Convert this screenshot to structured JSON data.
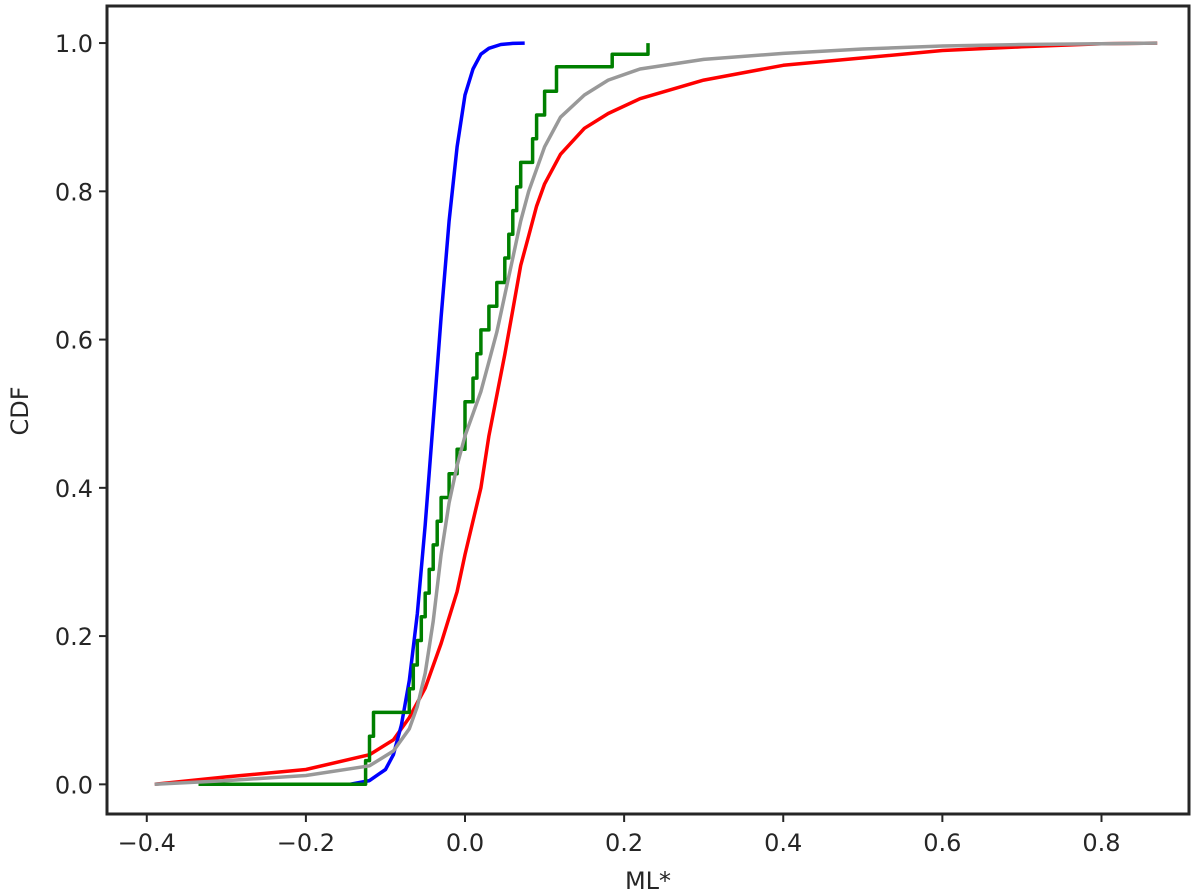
{
  "chart_data": {
    "type": "line",
    "title": "",
    "xlabel": "ML*",
    "ylabel": "CDF",
    "xlim": [
      -0.45,
      0.91
    ],
    "ylim": [
      -0.04,
      1.05
    ],
    "grid": false,
    "x_ticks": [
      -0.4,
      -0.2,
      0.0,
      0.2,
      0.4,
      0.6,
      0.8
    ],
    "x_tick_labels": [
      "−0.4",
      "−0.2",
      "0.0",
      "0.2",
      "0.4",
      "0.6",
      "0.8"
    ],
    "y_ticks": [
      0.0,
      0.2,
      0.4,
      0.6,
      0.8,
      1.0
    ],
    "y_tick_labels": [
      "0.0",
      "0.2",
      "0.4",
      "0.6",
      "0.8",
      "1.0"
    ],
    "series": [
      {
        "color": "#ff0000",
        "x": [
          -0.39,
          -0.3,
          -0.2,
          -0.12,
          -0.09,
          -0.07,
          -0.05,
          -0.03,
          -0.01,
          0.0,
          0.02,
          0.03,
          0.05,
          0.06,
          0.07,
          0.08,
          0.09,
          0.1,
          0.12,
          0.15,
          0.18,
          0.22,
          0.3,
          0.4,
          0.5,
          0.6,
          0.7,
          0.8,
          0.87
        ],
        "y": [
          0.0,
          0.01,
          0.02,
          0.04,
          0.06,
          0.09,
          0.13,
          0.19,
          0.26,
          0.31,
          0.4,
          0.47,
          0.58,
          0.64,
          0.7,
          0.74,
          0.78,
          0.81,
          0.85,
          0.885,
          0.905,
          0.925,
          0.95,
          0.97,
          0.98,
          0.99,
          0.995,
          0.999,
          1.0
        ]
      },
      {
        "color": "#0000ff",
        "x": [
          -0.145,
          -0.12,
          -0.1,
          -0.09,
          -0.08,
          -0.07,
          -0.06,
          -0.05,
          -0.04,
          -0.03,
          -0.02,
          -0.01,
          0.0,
          0.01,
          0.02,
          0.03,
          0.045,
          0.06,
          0.075
        ],
        "y": [
          0.0,
          0.005,
          0.02,
          0.04,
          0.08,
          0.14,
          0.23,
          0.35,
          0.49,
          0.63,
          0.76,
          0.86,
          0.93,
          0.965,
          0.985,
          0.993,
          0.998,
          0.9995,
          1.0
        ]
      },
      {
        "color": "#008000",
        "step": true,
        "x": [
          -0.335,
          -0.125,
          -0.12,
          -0.115,
          -0.07,
          -0.065,
          -0.06,
          -0.055,
          -0.05,
          -0.045,
          -0.04,
          -0.035,
          -0.03,
          -0.02,
          -0.01,
          0.0,
          0.01,
          0.015,
          0.02,
          0.03,
          0.04,
          0.05,
          0.055,
          0.06,
          0.065,
          0.07,
          0.085,
          0.09,
          0.1,
          0.115,
          0.185,
          0.23
        ],
        "y": [
          0.0,
          0.032,
          0.065,
          0.097,
          0.129,
          0.161,
          0.194,
          0.226,
          0.258,
          0.29,
          0.323,
          0.355,
          0.387,
          0.419,
          0.452,
          0.516,
          0.548,
          0.581,
          0.613,
          0.645,
          0.677,
          0.71,
          0.742,
          0.774,
          0.806,
          0.839,
          0.871,
          0.903,
          0.935,
          0.968,
          0.985,
          1.0
        ]
      },
      {
        "color": "#999999",
        "x": [
          -0.39,
          -0.3,
          -0.2,
          -0.12,
          -0.09,
          -0.07,
          -0.06,
          -0.05,
          -0.04,
          -0.03,
          -0.02,
          -0.01,
          0.0,
          0.01,
          0.02,
          0.03,
          0.04,
          0.05,
          0.06,
          0.07,
          0.08,
          0.1,
          0.12,
          0.15,
          0.18,
          0.22,
          0.3,
          0.4,
          0.5,
          0.6,
          0.7,
          0.8,
          0.87
        ],
        "y": [
          0.0,
          0.005,
          0.012,
          0.025,
          0.045,
          0.075,
          0.105,
          0.15,
          0.22,
          0.31,
          0.38,
          0.43,
          0.47,
          0.5,
          0.53,
          0.57,
          0.61,
          0.66,
          0.71,
          0.76,
          0.8,
          0.86,
          0.9,
          0.93,
          0.95,
          0.965,
          0.978,
          0.986,
          0.992,
          0.996,
          0.998,
          0.999,
          1.0
        ]
      }
    ]
  }
}
